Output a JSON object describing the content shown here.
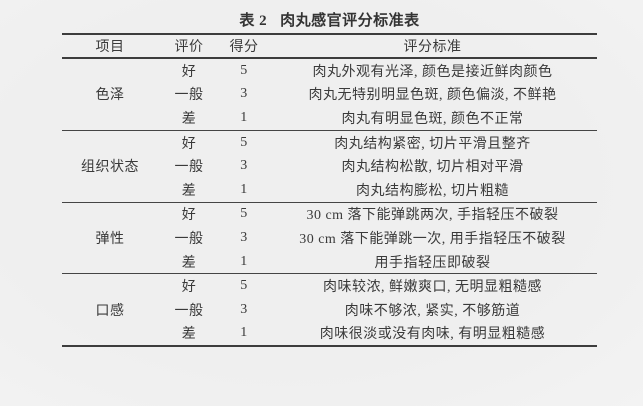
{
  "page": {
    "background_color": "#f1f1f1",
    "text_color": "#3a3a3a",
    "rule_color": "#3d3d3d"
  },
  "title": {
    "tag": "表 2",
    "text": "肉丸感官评分标准表"
  },
  "table": {
    "headers": [
      "项目",
      "评价",
      "得分",
      "评分标准"
    ],
    "groups": [
      {
        "item": "色泽",
        "rows": [
          {
            "grade": "好",
            "score": "5",
            "criteria": "肉丸外观有光泽, 颜色是接近鲜肉颜色"
          },
          {
            "grade": "一般",
            "score": "3",
            "criteria": "肉丸无特别明显色斑, 颜色偏淡, 不鲜艳"
          },
          {
            "grade": "差",
            "score": "1",
            "criteria": "肉丸有明显色斑, 颜色不正常"
          }
        ]
      },
      {
        "item": "组织状态",
        "rows": [
          {
            "grade": "好",
            "score": "5",
            "criteria": "肉丸结构紧密, 切片平滑且整齐"
          },
          {
            "grade": "一般",
            "score": "3",
            "criteria": "肉丸结构松散, 切片相对平滑"
          },
          {
            "grade": "差",
            "score": "1",
            "criteria": "肉丸结构膨松, 切片粗糙"
          }
        ]
      },
      {
        "item": "弹性",
        "rows": [
          {
            "grade": "好",
            "score": "5",
            "criteria": "30 cm 落下能弹跳两次, 手指轻压不破裂"
          },
          {
            "grade": "一般",
            "score": "3",
            "criteria": "30 cm 落下能弹跳一次, 用手指轻压不破裂"
          },
          {
            "grade": "差",
            "score": "1",
            "criteria": "用手指轻压即破裂"
          }
        ]
      },
      {
        "item": "口感",
        "rows": [
          {
            "grade": "好",
            "score": "5",
            "criteria": "肉味较浓, 鲜嫩爽口, 无明显粗糙感"
          },
          {
            "grade": "一般",
            "score": "3",
            "criteria": "肉味不够浓, 紧实, 不够筋道"
          },
          {
            "grade": "差",
            "score": "1",
            "criteria": "肉味很淡或没有肉味, 有明显粗糙感"
          }
        ]
      }
    ]
  }
}
